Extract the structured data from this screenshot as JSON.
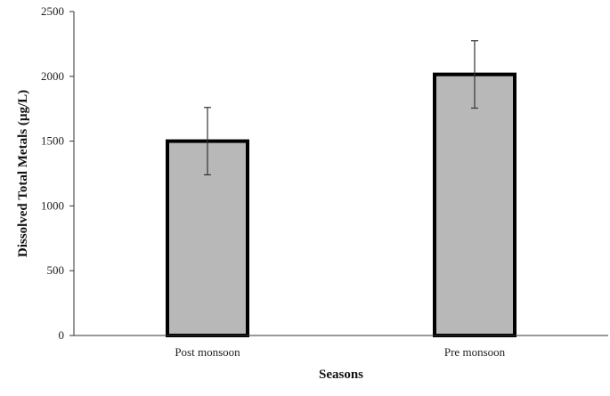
{
  "chart_data": {
    "type": "bar",
    "title": "",
    "xlabel": "Seasons",
    "ylabel": "Dissolved Total Metals (µg/L)",
    "categories": [
      "Post monsoon",
      "Pre monsoon"
    ],
    "values": [
      1500,
      2015
    ],
    "error": [
      260,
      260
    ],
    "ylim": [
      0,
      2500
    ],
    "yticks": [
      0,
      500,
      1000,
      1500,
      2000,
      2500
    ],
    "grid": false,
    "legend": "none",
    "colors": {
      "bar_fill": "#b8b8b8",
      "bar_edge": "#000000",
      "axis": "#333333",
      "error_bar": "#333333"
    }
  }
}
